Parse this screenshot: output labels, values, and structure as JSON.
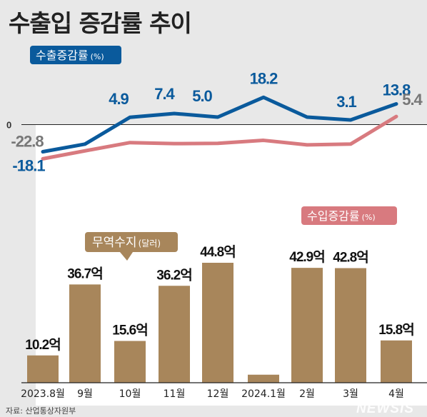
{
  "header": {
    "title": "수출입 증감률 추이"
  },
  "footer": {
    "source": "자료: 산업통상자원부",
    "watermark": "NEWSIS"
  },
  "colors": {
    "export": "#0a5a9c",
    "import": "#d87a7f",
    "trade": "#a8865b",
    "bg": "#e8e8e8",
    "panel": "#ffffff",
    "text": "#222222"
  },
  "chart_data": [
    {
      "type": "line",
      "zero_label": "0",
      "categories": [
        "2023.8월",
        "9월",
        "10월",
        "11월",
        "12월",
        "2024.1월",
        "2월",
        "3월",
        "4월"
      ],
      "series": [
        {
          "name": "수출증감률",
          "unit": "(%)",
          "values": [
            -18.1,
            -13.0,
            4.9,
            7.4,
            5.0,
            18.2,
            5.0,
            3.1,
            13.8
          ],
          "labels": [
            "-18.1",
            "",
            "4.9",
            "7.4",
            "5.0",
            "18.2",
            "",
            "3.1",
            "13.8"
          ]
        },
        {
          "name": "수입증감률",
          "unit": "(%)",
          "values": [
            -22.8,
            -17.5,
            -12.0,
            -12.7,
            -12.5,
            -10.5,
            -13.5,
            -13.0,
            5.4
          ],
          "labels": [
            "-22.8",
            "",
            "",
            "",
            "",
            "",
            "",
            "",
            "5.4"
          ]
        }
      ]
    },
    {
      "type": "bar",
      "series_name": "무역수지",
      "unit": "(달러)",
      "categories": [
        "2023.8월",
        "9월",
        "10월",
        "11월",
        "12월",
        "2024.1월",
        "2월",
        "3월",
        "4월"
      ],
      "values": [
        10.2,
        36.7,
        15.6,
        36.2,
        44.8,
        3.0,
        42.9,
        42.8,
        15.8
      ],
      "labels": [
        "10.2억",
        "36.7억",
        "15.6억",
        "36.2억",
        "44.8억",
        "",
        "42.9억",
        "42.8억",
        "15.8억"
      ]
    }
  ]
}
